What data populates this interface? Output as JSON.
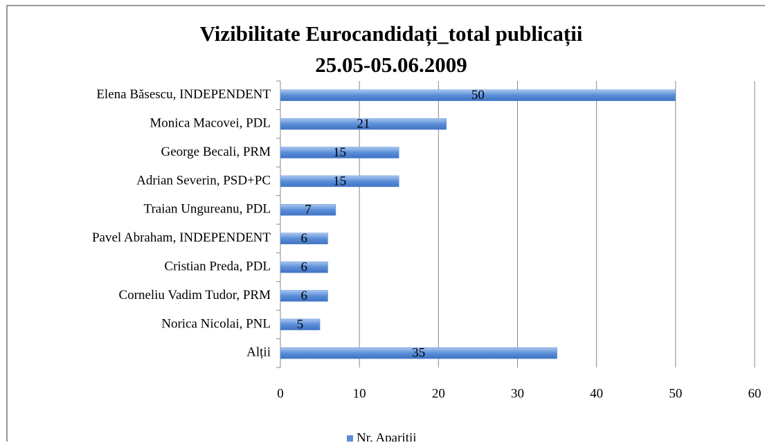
{
  "chart_data": {
    "type": "bar",
    "orientation": "horizontal",
    "title": "Vizibilitate Eurocandidați_total publicații",
    "subtitle": "25.05-05.06.2009",
    "categories": [
      "Elena Băsescu, INDEPENDENT",
      "Monica Macovei, PDL",
      "George Becali, PRM",
      "Adrian Severin, PSD+PC",
      "Traian Ungureanu, PDL",
      "Pavel Abraham, INDEPENDENT",
      "Cristian Preda, PDL",
      "Corneliu Vadim Tudor, PRM",
      "Norica Nicolai, PNL",
      "Alții"
    ],
    "series": [
      {
        "name": "Nr. Apariții",
        "color": "#5b8ed8",
        "values": [
          50,
          21,
          15,
          15,
          7,
          6,
          6,
          6,
          5,
          35
        ]
      }
    ],
    "xlim": [
      0,
      60
    ],
    "xticks": [
      0,
      10,
      20,
      30,
      40,
      50,
      60
    ],
    "grid": true,
    "legend": "bottom"
  }
}
